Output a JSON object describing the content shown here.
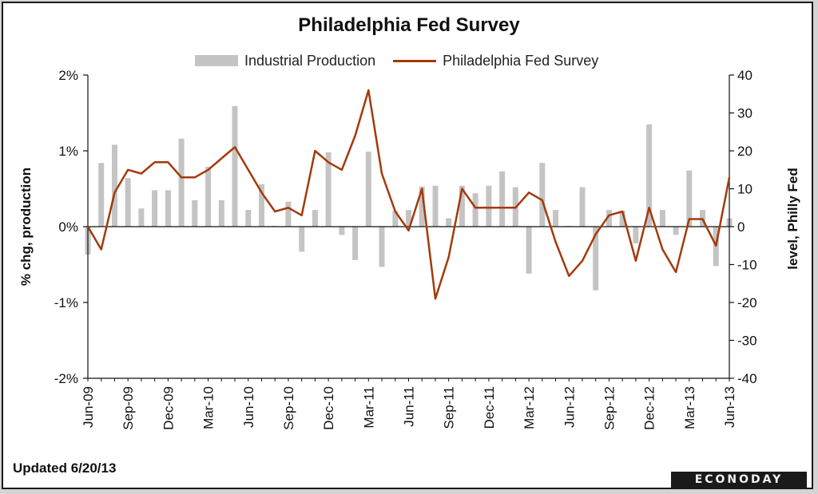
{
  "chart_data": {
    "type": "bar+line",
    "title": "Philadelphia Fed Survey",
    "legend": [
      {
        "label": "Industrial Production",
        "kind": "bar"
      },
      {
        "label": "Philadelphia Fed Survey",
        "kind": "line"
      }
    ],
    "legend_position": "top-center",
    "left_axis": {
      "label": "% chg, production",
      "range": [
        -2,
        2
      ],
      "ticks": [
        2,
        1,
        0,
        -1,
        -2
      ],
      "tick_labels": [
        "2%",
        "1%",
        "0%",
        "-1%",
        "-2%"
      ]
    },
    "right_axis": {
      "label": "level, Philly Fed",
      "range": [
        -40,
        40
      ],
      "ticks": [
        40,
        30,
        20,
        10,
        0,
        -10,
        -20,
        -30,
        -40
      ],
      "tick_labels": [
        "40",
        "30",
        "20",
        "10",
        "0",
        "-10",
        "-20",
        "-30",
        "-40"
      ]
    },
    "x_tick_labels": [
      "Jun-09",
      "Sep-09",
      "Dec-09",
      "Mar-10",
      "Jun-10",
      "Sep-10",
      "Dec-10",
      "Mar-11",
      "Jun-11",
      "Sep-11",
      "Dec-11",
      "Mar-12",
      "Jun-12",
      "Sep-12",
      "Dec-12",
      "Mar-13",
      "Jun-13"
    ],
    "months": [
      "Jun-09",
      "Jul-09",
      "Aug-09",
      "Sep-09",
      "Oct-09",
      "Nov-09",
      "Dec-09",
      "Jan-10",
      "Feb-10",
      "Mar-10",
      "Apr-10",
      "May-10",
      "Jun-10",
      "Jul-10",
      "Aug-10",
      "Sep-10",
      "Oct-10",
      "Nov-10",
      "Dec-10",
      "Jan-11",
      "Feb-11",
      "Mar-11",
      "Apr-11",
      "May-11",
      "Jun-11",
      "Jul-11",
      "Aug-11",
      "Sep-11",
      "Oct-11",
      "Nov-11",
      "Dec-11",
      "Jan-12",
      "Feb-12",
      "Mar-12",
      "Apr-12",
      "May-12",
      "Jun-12",
      "Jul-12",
      "Aug-12",
      "Sep-12",
      "Oct-12",
      "Nov-12",
      "Dec-12",
      "Jan-13",
      "Feb-13",
      "Mar-13",
      "Apr-13",
      "May-13",
      "Jun-13"
    ],
    "series": [
      {
        "name": "Industrial Production",
        "type": "bar",
        "axis": "left",
        "color": "#c4c4c4",
        "values": [
          -0.37,
          0.84,
          1.08,
          0.64,
          0.24,
          0.48,
          0.48,
          1.16,
          0.35,
          0.79,
          0.35,
          1.59,
          0.22,
          0.56,
          0.01,
          0.33,
          -0.33,
          0.22,
          0.98,
          -0.11,
          -0.44,
          0.99,
          -0.53,
          0.21,
          0.22,
          0.53,
          0.54,
          0.11,
          0.54,
          0.44,
          0.54,
          0.73,
          0.52,
          -0.62,
          0.84,
          0.22,
          0.01,
          0.52,
          -0.84,
          0.22,
          0.21,
          -0.22,
          1.35,
          0.22,
          -0.11,
          0.74,
          0.22,
          -0.52,
          0.11
        ]
      },
      {
        "name": "Philadelphia Fed Survey",
        "type": "line",
        "axis": "right",
        "color": "#a33a0c",
        "values": [
          0,
          -6,
          9,
          15,
          14,
          17,
          17,
          13,
          13,
          15,
          18,
          21,
          15,
          9,
          4,
          5,
          3,
          20,
          17,
          15,
          24,
          36,
          14,
          4,
          -1,
          10,
          -19,
          -8,
          10,
          5,
          5,
          5,
          5,
          9,
          7,
          -4,
          -13,
          -9,
          -2,
          3,
          4,
          -9,
          5,
          -6,
          -12,
          2,
          2,
          -5,
          13
        ]
      }
    ],
    "grid": false
  },
  "footer": {
    "updated": "Updated 6/20/13",
    "brand": "ECONODAY"
  }
}
